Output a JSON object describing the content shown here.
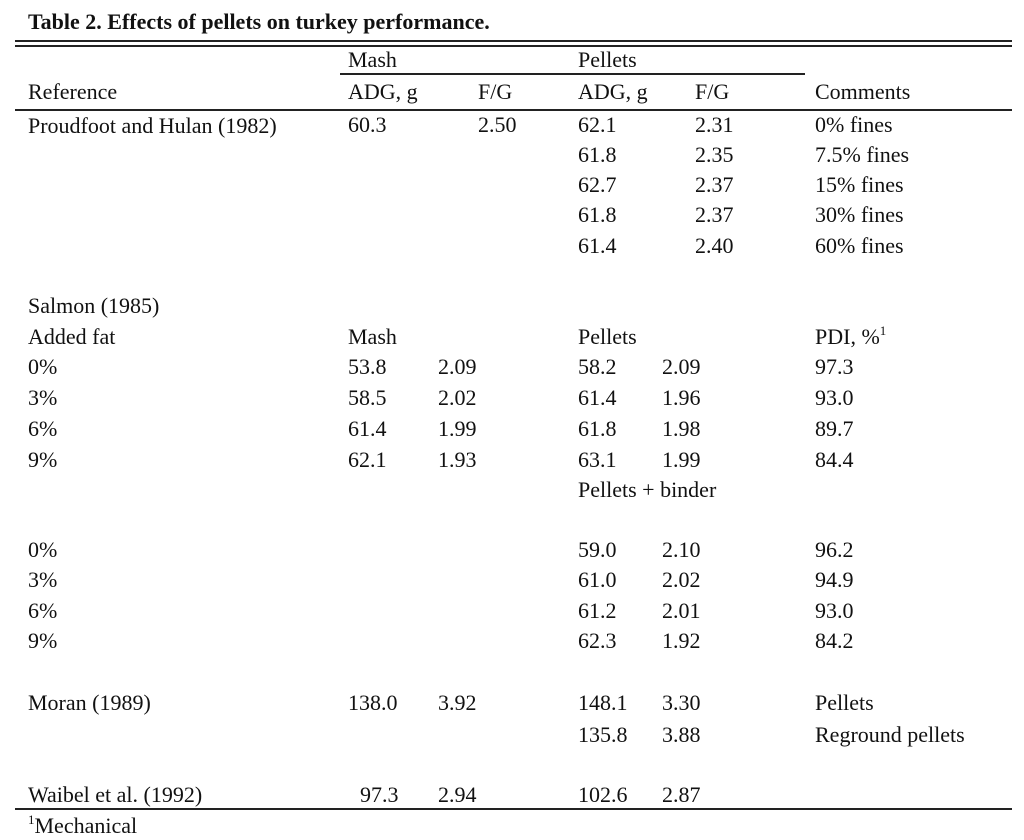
{
  "title": "Table 2. Effects of pellets on turkey performance.",
  "header": {
    "groups": [
      "Mash",
      "Pellets"
    ],
    "columns": [
      "Reference",
      "ADG, g",
      "F/G",
      "ADG, g",
      "F/G",
      "Comments"
    ]
  },
  "rows": [
    [
      "Proudfoot and Hulan (1982)",
      "60.3",
      "2.50",
      "62.1",
      "2.31",
      "0% fines"
    ],
    [
      null,
      null,
      null,
      "61.8",
      "2.35",
      "7.5% fines"
    ],
    [
      null,
      null,
      null,
      "62.7",
      "2.37",
      "15% fines"
    ],
    [
      null,
      null,
      null,
      "61.8",
      "2.37",
      "30% fines"
    ],
    [
      null,
      null,
      null,
      "61.4",
      "2.40",
      "60% fines"
    ],
    [
      "Salmon (1985)",
      null,
      null,
      null,
      null,
      null
    ],
    [
      "Added fat",
      "Mash",
      null,
      "Pellets",
      null,
      {
        "text": "PDI, %",
        "sup": "1"
      }
    ],
    [
      "0%",
      "53.8",
      "2.09",
      "58.2",
      "2.09",
      "97.3"
    ],
    [
      "3%",
      "58.5",
      "2.02",
      "61.4",
      "1.96",
      "93.0"
    ],
    [
      "6%",
      "61.4",
      "1.99",
      "61.8",
      "1.98",
      "89.7"
    ],
    [
      "9%",
      "62.1",
      "1.93",
      "63.1",
      "1.99",
      "84.4"
    ],
    [
      null,
      null,
      null,
      "Pellets + binder",
      null,
      null
    ],
    [
      "0%",
      null,
      null,
      "59.0",
      "2.10",
      "96.2"
    ],
    [
      "3%",
      null,
      null,
      "61.0",
      "2.02",
      "94.9"
    ],
    [
      "6%",
      null,
      null,
      "61.2",
      "2.01",
      "93.0"
    ],
    [
      "9%",
      null,
      null,
      "62.3",
      "1.92",
      "84.2"
    ],
    [
      "Moran (1989)",
      "138.0",
      "3.92",
      "148.1",
      "3.30",
      "Pellets"
    ],
    [
      null,
      null,
      null,
      "135.8",
      "3.88",
      "Reground pellets"
    ],
    [
      "Waibel et al. (1992)",
      "97.3",
      "2.94",
      "102.6",
      "2.87",
      null
    ]
  ],
  "footnote": {
    "sup": "1",
    "text": "Mechanical"
  }
}
